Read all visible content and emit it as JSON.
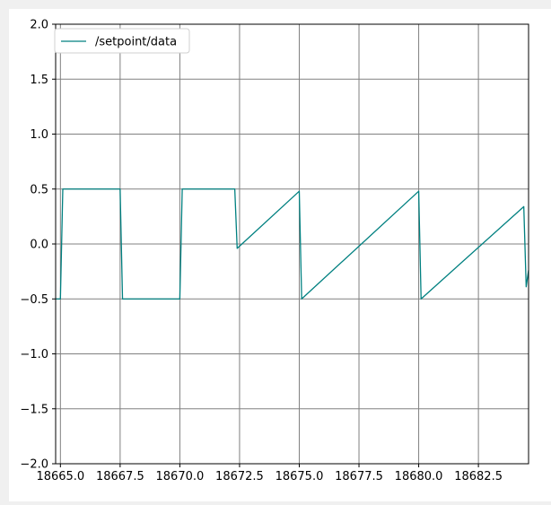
{
  "chart_data": {
    "type": "line",
    "title": "",
    "xlabel": "",
    "ylabel": "",
    "xlim": [
      18664.8,
      18684.6
    ],
    "ylim": [
      -2.0,
      2.0
    ],
    "grid": true,
    "legend_placement": "top-left",
    "xticks": [
      {
        "value": 18665.0,
        "label": "18665.0"
      },
      {
        "value": 18667.5,
        "label": "18667.5"
      },
      {
        "value": 18670.0,
        "label": "18670.0"
      },
      {
        "value": 18672.5,
        "label": "18672.5"
      },
      {
        "value": 18675.0,
        "label": "18675.0"
      },
      {
        "value": 18677.5,
        "label": "18677.5"
      },
      {
        "value": 18680.0,
        "label": "18680.0"
      },
      {
        "value": 18682.5,
        "label": "18682.5"
      }
    ],
    "yticks": [
      {
        "value": -2.0,
        "label": "−2.0"
      },
      {
        "value": -1.5,
        "label": "−1.5"
      },
      {
        "value": -1.0,
        "label": "−1.0"
      },
      {
        "value": -0.5,
        "label": "−0.5"
      },
      {
        "value": 0.0,
        "label": "0.0"
      },
      {
        "value": 0.5,
        "label": "0.5"
      },
      {
        "value": 1.0,
        "label": "1.0"
      },
      {
        "value": 1.5,
        "label": "1.5"
      },
      {
        "value": 2.0,
        "label": "2.0"
      }
    ],
    "series": [
      {
        "name": "/setpoint/data",
        "color": "#008080",
        "x": [
          18664.8,
          18665.0,
          18665.1,
          18667.5,
          18667.6,
          18670.0,
          18670.1,
          18672.3,
          18672.4,
          18675.0,
          18675.1,
          18680.0,
          18680.1,
          18684.4,
          18684.5,
          18684.6
        ],
        "y": [
          -0.5,
          -0.5,
          0.5,
          0.5,
          -0.5,
          -0.5,
          0.5,
          0.5,
          -0.04,
          0.48,
          -0.5,
          0.48,
          -0.5,
          0.34,
          -0.39,
          -0.24
        ]
      }
    ]
  }
}
